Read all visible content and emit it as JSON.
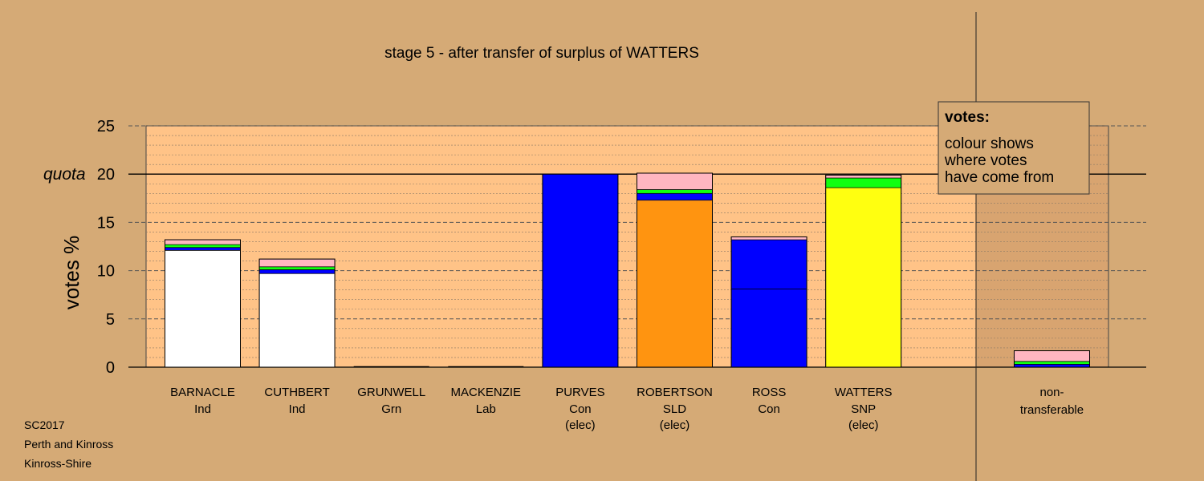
{
  "chart_data": {
    "type": "bar",
    "stacked": true,
    "title": "stage 5 - after transfer of surplus of WATTERS",
    "ylabel": "votes %",
    "ylim": [
      0,
      25
    ],
    "yticks": [
      "0",
      "5",
      "10",
      "15",
      "20",
      "25"
    ],
    "quota": {
      "label": "quota",
      "value": 20
    },
    "legend": {
      "title": "votes:",
      "lines": [
        "colour shows",
        "where votes",
        "have come from"
      ],
      "placement": "top-right"
    },
    "colors": {
      "background": "#d5aa76",
      "plot_area": "#ffc387",
      "plot_side": "#d8a470",
      "Ind": "#ffffff",
      "Con": "#0000ff",
      "SLD": "#ff9410",
      "SNP": "#ffff10",
      "Grn": "#10ff10",
      "Lab": "#ffb6c1"
    },
    "candidates": [
      {
        "name": "BARNACLE",
        "party": "Ind",
        "status": "",
        "segments": [
          {
            "source": "Ind",
            "value": 12.1
          },
          {
            "source": "Con",
            "value": 0.3
          },
          {
            "source": "Grn",
            "value": 0.3
          },
          {
            "source": "Lab",
            "value": 0.5
          }
        ]
      },
      {
        "name": "CUTHBERT",
        "party": "Ind",
        "status": "",
        "segments": [
          {
            "source": "Ind",
            "value": 9.7
          },
          {
            "source": "Con",
            "value": 0.4
          },
          {
            "source": "Grn",
            "value": 0.3
          },
          {
            "source": "Lab",
            "value": 0.8
          }
        ]
      },
      {
        "name": "GRUNWELL",
        "party": "Grn",
        "status": "",
        "segments": []
      },
      {
        "name": "MACKENZIE",
        "party": "Lab",
        "status": "",
        "segments": []
      },
      {
        "name": "PURVES",
        "party": "Con",
        "status": "(elec)",
        "segments": [
          {
            "source": "Con",
            "value": 20.0
          }
        ]
      },
      {
        "name": "ROBERTSON",
        "party": "SLD",
        "status": "(elec)",
        "segments": [
          {
            "source": "SLD",
            "value": 17.3
          },
          {
            "source": "Con",
            "value": 0.7
          },
          {
            "source": "Grn",
            "value": 0.4
          },
          {
            "source": "Lab",
            "value": 1.7
          }
        ]
      },
      {
        "name": "ROSS",
        "party": "Con",
        "status": "",
        "segments": [
          {
            "source": "Con",
            "value": 8.1
          },
          {
            "source": "Con",
            "value": 5.1
          },
          {
            "source": "Lab",
            "value": 0.3
          }
        ]
      },
      {
        "name": "WATTERS",
        "party": "SNP",
        "status": "(elec)",
        "segments": [
          {
            "source": "SNP",
            "value": 18.6
          },
          {
            "source": "Grn",
            "value": 1.0
          },
          {
            "source": "Lab",
            "value": 0.3
          }
        ]
      }
    ],
    "non_transferable": {
      "label1": "non-",
      "label2": "transferable",
      "segments": [
        {
          "source": "Con",
          "value": 0.3
        },
        {
          "source": "Grn",
          "value": 0.3
        },
        {
          "source": "Lab",
          "value": 1.1
        }
      ]
    }
  },
  "footer": {
    "line1": "SC2017",
    "line2": "Perth and Kinross",
    "line3": "Kinross-Shire"
  }
}
